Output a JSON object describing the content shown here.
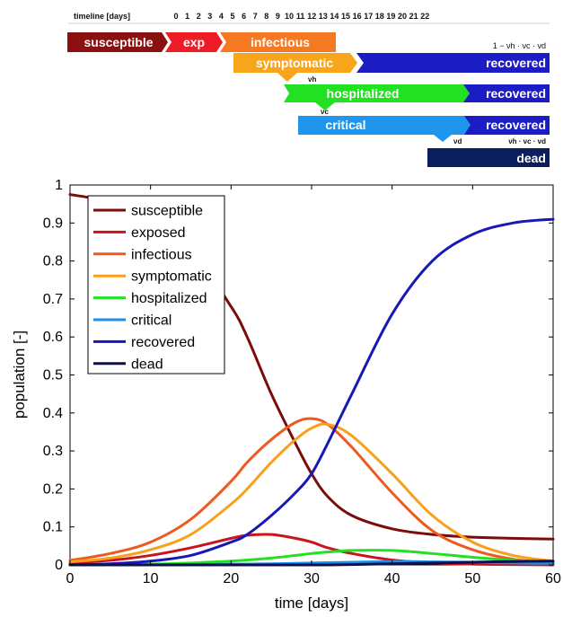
{
  "timeline": {
    "header_label": "timeline [days]",
    "day_labels": [
      "0",
      "1",
      "2",
      "3",
      "4",
      "5",
      "6",
      "7",
      "8",
      "9",
      "10",
      "11",
      "12",
      "13",
      "14",
      "15",
      "16",
      "17",
      "18",
      "19",
      "20",
      "21",
      "22"
    ],
    "stages": [
      {
        "id": "susceptible",
        "label": "susceptible",
        "color": "#8b1010"
      },
      {
        "id": "exposed",
        "label": "exp",
        "color": "#ee1c24"
      },
      {
        "id": "infectious",
        "label": "infectious",
        "color": "#f47920"
      },
      {
        "id": "symptomatic",
        "label": "symptomatic",
        "color": "#f9a51b"
      },
      {
        "id": "recovered-1",
        "label": "recovered",
        "color": "#1c1cc4"
      },
      {
        "id": "hospitalized",
        "label": "hospitalized",
        "color": "#22e022"
      },
      {
        "id": "recovered-2",
        "label": "recovered",
        "color": "#1c1cc4"
      },
      {
        "id": "critical",
        "label": "critical",
        "color": "#1f96ee"
      },
      {
        "id": "recovered-3",
        "label": "recovered",
        "color": "#1c1cc4"
      },
      {
        "id": "dead",
        "label": "dead",
        "color": "#0b1f5c"
      }
    ],
    "annotations": {
      "recovered_fraction": "1 − νh · νc · νd",
      "nu_h": "νh",
      "nu_c": "νc",
      "nu_d": "νd",
      "dead_fraction": "νh · νc · νd"
    }
  },
  "chart_data": {
    "type": "line",
    "xlabel": "time [days]",
    "ylabel": "population [-]",
    "xlim": [
      0,
      60
    ],
    "ylim": [
      0,
      1
    ],
    "xticks": [
      0,
      10,
      20,
      30,
      40,
      50,
      60
    ],
    "yticks": [
      0,
      0.1,
      0.2,
      0.3,
      0.4,
      0.5,
      0.6,
      0.7,
      0.8,
      0.9,
      1
    ],
    "ytick_labels": [
      "0",
      "0.1",
      "0.2",
      "0.3",
      "0.4",
      "0.5",
      "0.6",
      "0.7",
      "0.8",
      "0.9",
      "1"
    ],
    "legend_position": "top-left",
    "grid": false,
    "x": [
      0,
      5,
      10,
      15,
      20,
      22,
      25,
      28,
      30,
      32,
      35,
      40,
      45,
      50,
      55,
      60
    ],
    "series": [
      {
        "name": "susceptible",
        "color": "#7a0c0c",
        "values": [
          0.975,
          0.955,
          0.91,
          0.83,
          0.68,
          0.6,
          0.45,
          0.32,
          0.24,
          0.18,
          0.13,
          0.095,
          0.08,
          0.073,
          0.07,
          0.068
        ]
      },
      {
        "name": "exposed",
        "color": "#c8141c",
        "values": [
          0.005,
          0.012,
          0.025,
          0.045,
          0.07,
          0.078,
          0.08,
          0.07,
          0.06,
          0.045,
          0.03,
          0.013,
          0.005,
          0.002,
          0.001,
          0.0
        ]
      },
      {
        "name": "infectious",
        "color": "#ee5a1e",
        "values": [
          0.012,
          0.03,
          0.06,
          0.12,
          0.22,
          0.27,
          0.33,
          0.375,
          0.385,
          0.37,
          0.31,
          0.19,
          0.09,
          0.04,
          0.015,
          0.005
        ]
      },
      {
        "name": "symptomatic",
        "color": "#f9a01b",
        "values": [
          0.008,
          0.018,
          0.04,
          0.08,
          0.16,
          0.2,
          0.27,
          0.33,
          0.36,
          0.37,
          0.34,
          0.24,
          0.13,
          0.06,
          0.025,
          0.01
        ]
      },
      {
        "name": "hospitalized",
        "color": "#22e022",
        "values": [
          0.0,
          0.001,
          0.002,
          0.005,
          0.01,
          0.013,
          0.018,
          0.025,
          0.03,
          0.034,
          0.038,
          0.038,
          0.03,
          0.02,
          0.012,
          0.006
        ]
      },
      {
        "name": "critical",
        "color": "#1f8ee6",
        "values": [
          0.0,
          0.0,
          0.0,
          0.001,
          0.002,
          0.002,
          0.003,
          0.004,
          0.005,
          0.006,
          0.007,
          0.009,
          0.008,
          0.007,
          0.005,
          0.004
        ]
      },
      {
        "name": "recovered",
        "color": "#1818b8",
        "values": [
          0.0,
          0.003,
          0.01,
          0.025,
          0.06,
          0.08,
          0.13,
          0.19,
          0.24,
          0.32,
          0.45,
          0.66,
          0.8,
          0.87,
          0.9,
          0.91
        ]
      },
      {
        "name": "dead",
        "color": "#0a1050",
        "values": [
          0.0,
          0.0,
          0.0,
          0.0,
          0.0,
          0.0,
          0.0,
          0.0,
          0.0,
          0.0,
          0.001,
          0.003,
          0.005,
          0.007,
          0.009,
          0.01
        ]
      }
    ]
  }
}
